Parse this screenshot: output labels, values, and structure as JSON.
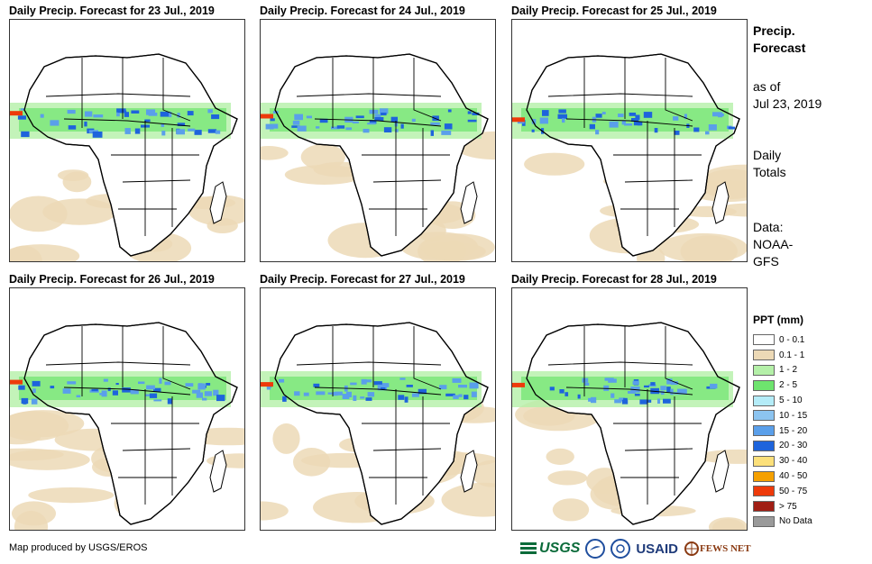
{
  "panels": [
    {
      "title": "Daily Precip. Forecast for 23 Jul., 2019"
    },
    {
      "title": "Daily Precip. Forecast for 24 Jul., 2019"
    },
    {
      "title": "Daily Precip. Forecast for 25 Jul., 2019"
    },
    {
      "title": "Daily Precip. Forecast for 26 Jul., 2019"
    },
    {
      "title": "Daily Precip. Forecast for 27 Jul., 2019"
    },
    {
      "title": "Daily Precip. Forecast for 28 Jul., 2019"
    }
  ],
  "side": {
    "heading_line1": "Precip.",
    "heading_line2": "Forecast",
    "asof_line1": "as of",
    "asof_line2": "Jul 23, 2019",
    "totals_line1": "Daily",
    "totals_line2": "Totals",
    "data_line1": "Data:",
    "data_line2": "NOAA-",
    "data_line3": "GFS"
  },
  "legend": {
    "title": "PPT (mm)",
    "items": [
      {
        "label": "0 - 0.1",
        "color": "#ffffff"
      },
      {
        "label": "0.1 - 1",
        "color": "#ecd9b6"
      },
      {
        "label": "1 - 2",
        "color": "#b4f0a8"
      },
      {
        "label": "2 - 5",
        "color": "#6ee46e"
      },
      {
        "label": "5 - 10",
        "color": "#b4ecf8"
      },
      {
        "label": "10 - 15",
        "color": "#8cc4f0"
      },
      {
        "label": "15 - 20",
        "color": "#5a9fea"
      },
      {
        "label": "20 - 30",
        "color": "#1e64dc"
      },
      {
        "label": "30 - 40",
        "color": "#fce07a"
      },
      {
        "label": "40 - 50",
        "color": "#f5a000"
      },
      {
        "label": "50 - 75",
        "color": "#ee3a0a"
      },
      {
        "label": "> 75",
        "color": "#a01e14"
      },
      {
        "label": "No Data",
        "color": "#9a9a9a"
      }
    ]
  },
  "credit": "Map produced by USGS/EROS",
  "logos": {
    "usgs": "USGS",
    "noaa": "NOAA",
    "usaid": "USAID",
    "fews": "FEWS NET"
  },
  "colors": {
    "land_outline": "#000000",
    "dry": "#ecd9b6",
    "light": "#b4f0a8",
    "medium": "#6ee46e",
    "wet": "#5a9fea",
    "very_wet": "#1e64dc",
    "extreme": "#ee3a0a"
  }
}
